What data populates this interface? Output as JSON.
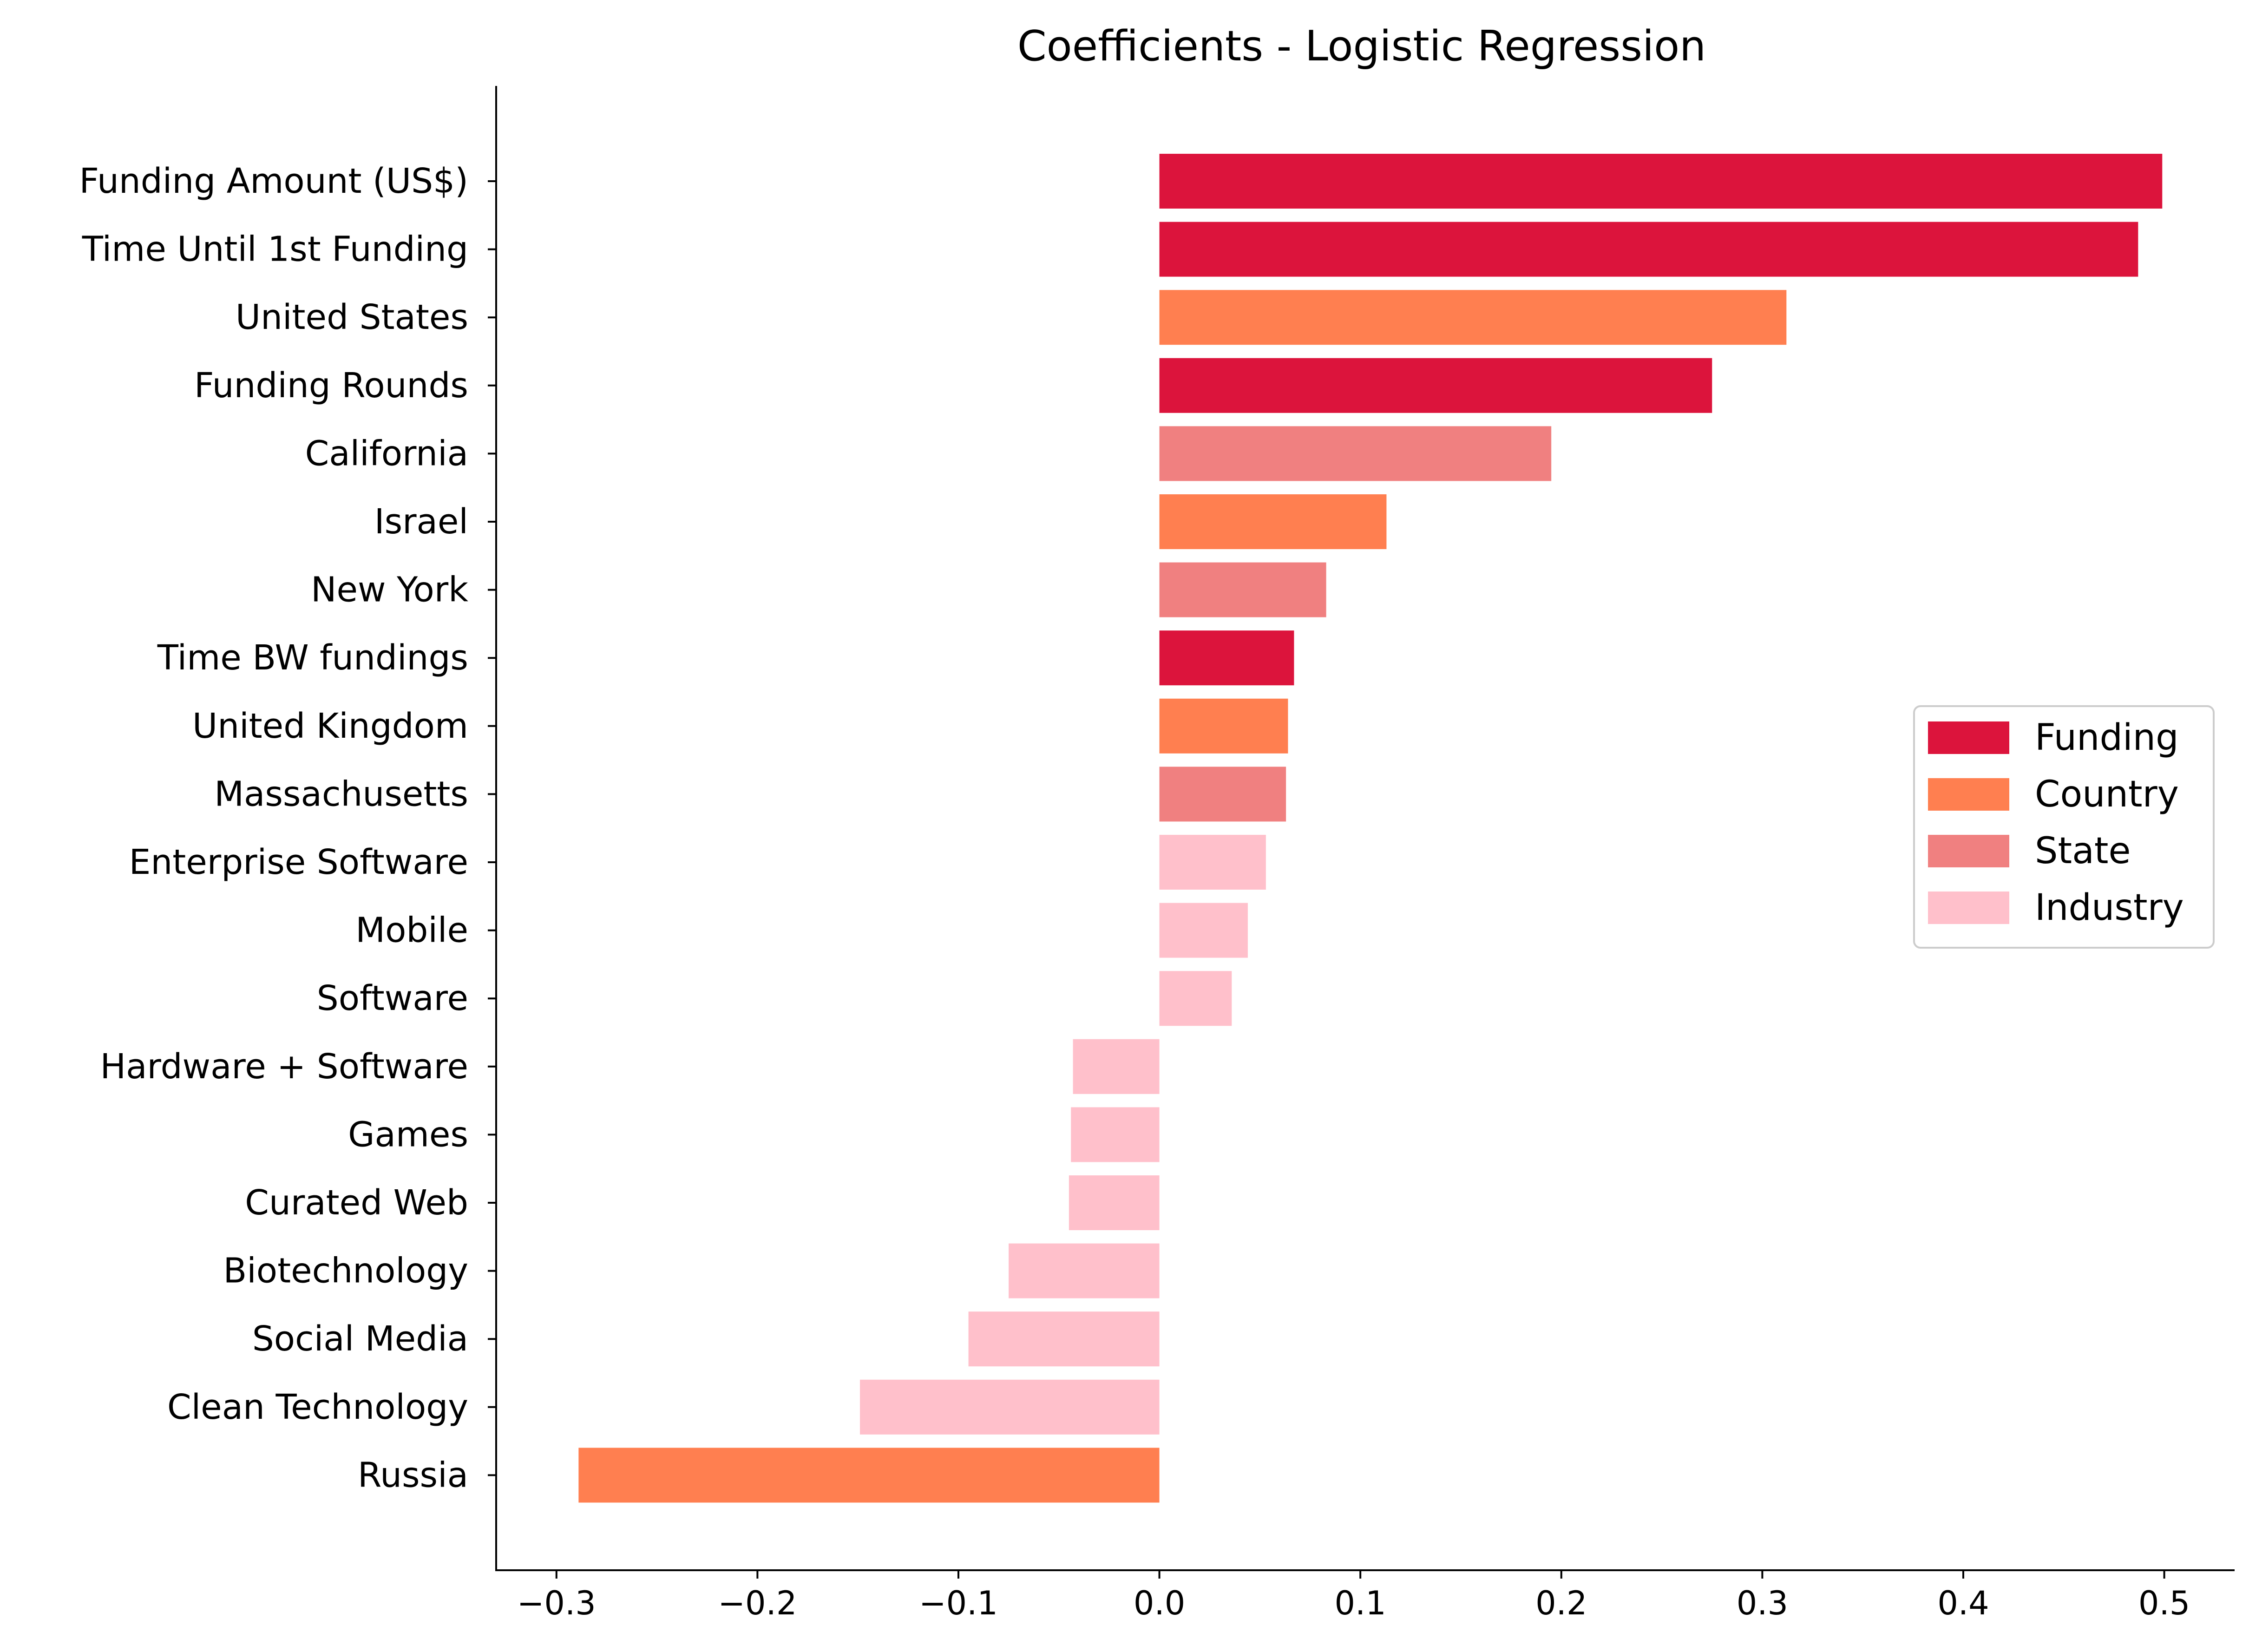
{
  "chart_data": {
    "type": "bar",
    "orientation": "horizontal",
    "title": "Coefficients - Logistic Regression",
    "xlabel": "",
    "ylabel": "",
    "xlim": [
      -0.33,
      0.535
    ],
    "xticks": [
      -0.3,
      -0.2,
      -0.1,
      0.0,
      0.1,
      0.2,
      0.3,
      0.4,
      0.5
    ],
    "xtick_labels": [
      "−0.3",
      "−0.2",
      "−0.1",
      "0.0",
      "0.1",
      "0.2",
      "0.3",
      "0.4",
      "0.5"
    ],
    "grid": false,
    "legend_position": "center-right",
    "groups": [
      {
        "name": "Funding",
        "color": "#dc143c"
      },
      {
        "name": "Country",
        "color": "#ff7f50"
      },
      {
        "name": "State",
        "color": "#f08080"
      },
      {
        "name": "Industry",
        "color": "#ffc0cb"
      }
    ],
    "categories": [
      "Funding Amount (US$)",
      "Time Until 1st Funding",
      "United States",
      "Funding Rounds",
      "California",
      "Israel",
      "New York",
      "Time BW fundings",
      "United Kingdom",
      "Massachusetts",
      "Enterprise Software",
      "Mobile",
      "Software",
      "Hardware + Software",
      "Games",
      "Curated Web",
      "Biotechnology",
      "Social Media",
      "Clean Technology",
      "Russia"
    ],
    "values": [
      0.499,
      0.487,
      0.312,
      0.275,
      0.195,
      0.113,
      0.083,
      0.067,
      0.064,
      0.063,
      0.053,
      0.044,
      0.036,
      -0.043,
      -0.044,
      -0.045,
      -0.075,
      -0.095,
      -0.149,
      -0.289
    ],
    "group_of_bar": [
      "Funding",
      "Funding",
      "Country",
      "Funding",
      "State",
      "Country",
      "State",
      "Funding",
      "Country",
      "State",
      "Industry",
      "Industry",
      "Industry",
      "Industry",
      "Industry",
      "Industry",
      "Industry",
      "Industry",
      "Industry",
      "Country"
    ]
  }
}
